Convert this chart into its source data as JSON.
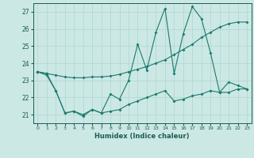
{
  "xlabel": "Humidex (Indice chaleur)",
  "x": [
    0,
    1,
    2,
    3,
    4,
    5,
    6,
    7,
    8,
    9,
    10,
    11,
    12,
    13,
    14,
    15,
    16,
    17,
    18,
    19,
    20,
    21,
    22,
    23
  ],
  "line_upper": [
    23.5,
    23.4,
    23.3,
    23.2,
    23.15,
    23.15,
    23.2,
    23.2,
    23.25,
    23.35,
    23.5,
    23.65,
    23.8,
    24.0,
    24.2,
    24.5,
    24.8,
    25.1,
    25.5,
    25.8,
    26.1,
    26.3,
    26.4,
    26.4
  ],
  "line_middle": [
    23.5,
    23.4,
    22.4,
    21.1,
    21.2,
    21.0,
    21.3,
    21.1,
    22.2,
    21.9,
    23.0,
    25.1,
    23.6,
    25.8,
    27.2,
    23.4,
    25.7,
    27.3,
    26.6,
    24.6,
    22.3,
    22.9,
    22.7,
    22.5
  ],
  "line_lower": [
    23.5,
    23.3,
    22.4,
    21.1,
    21.2,
    20.9,
    21.3,
    21.1,
    21.2,
    21.3,
    21.6,
    21.8,
    22.0,
    22.2,
    22.4,
    21.8,
    21.9,
    22.1,
    22.2,
    22.4,
    22.3,
    22.3,
    22.5,
    22.5
  ],
  "ylim": [
    20.5,
    27.5
  ],
  "yticks": [
    21,
    22,
    23,
    24,
    25,
    26,
    27
  ],
  "bg_color": "#cce8e4",
  "line_color": "#1a7a6e",
  "grid_color": "#afd4d0",
  "font_color": "#1a5c55"
}
